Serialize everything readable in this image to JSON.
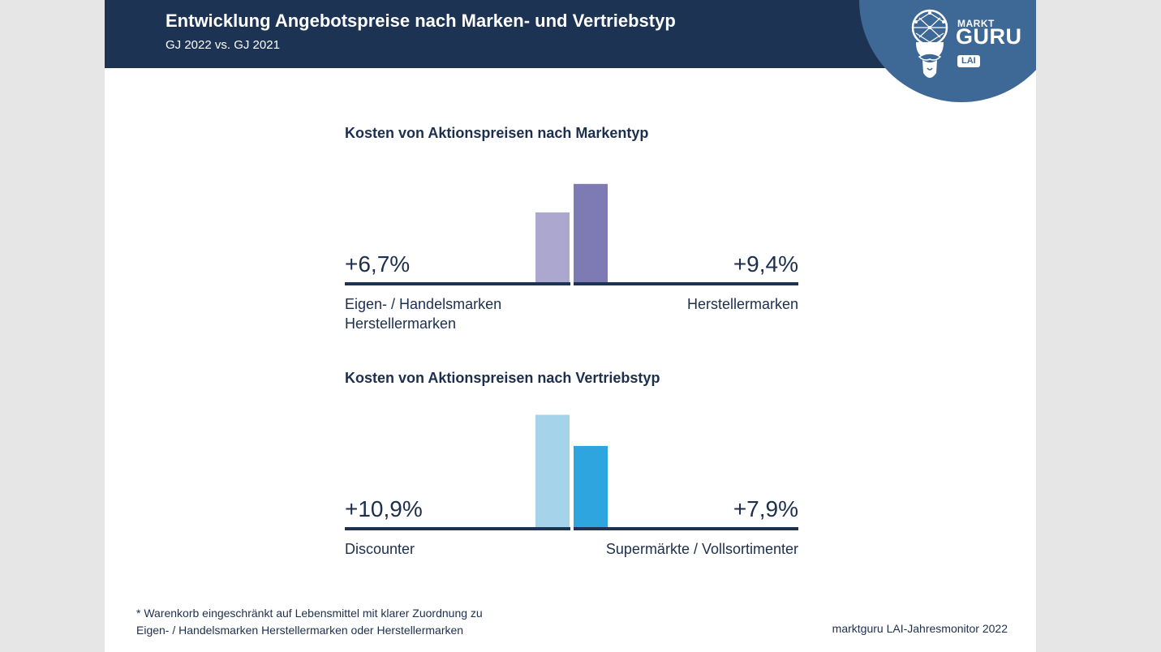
{
  "header": {
    "title": "Entwicklung Angebotspreise nach Marken- und Vertriebstyp",
    "subtitle": "GJ 2022 vs. GJ 2021"
  },
  "logo": {
    "markt": "MARKT",
    "guru": "GURU",
    "lai": "LAI",
    "icon": "guru-mascot-icon"
  },
  "colors": {
    "header_bg": "#1c3354",
    "logo_bg": "#3e6896",
    "baseline": "#1c3354",
    "text": "#1c2f4d"
  },
  "chart_data": [
    {
      "type": "bar",
      "title": "Kosten von Aktionspreisen nach Markentyp",
      "categories": [
        "Eigen- / Handelsmarken\nHerstellermarken",
        "Herstellermarken"
      ],
      "values": [
        6.7,
        9.4
      ],
      "value_labels": [
        "+6,7%",
        "+9,4%"
      ],
      "colors": [
        "#aca7cf",
        "#7e7bb4"
      ],
      "unit": "%"
    },
    {
      "type": "bar",
      "title": "Kosten von Aktionspreisen nach Vertriebstyp",
      "categories": [
        "Discounter",
        "Supermärkte / Vollsortimenter"
      ],
      "values": [
        10.9,
        7.9
      ],
      "value_labels": [
        "+10,9%",
        "+7,9%"
      ],
      "colors": [
        "#a5d4ea",
        "#2fa5df"
      ],
      "unit": "%"
    }
  ],
  "footer": {
    "note_line1": "* Warenkorb eingeschränkt auf Lebensmittel mit klarer Zuordnung zu",
    "note_line2": "Eigen- / Handelsmarken Herstellermarken oder Herstellermarken",
    "source": "marktguru LAI-Jahresmonitor 2022"
  }
}
